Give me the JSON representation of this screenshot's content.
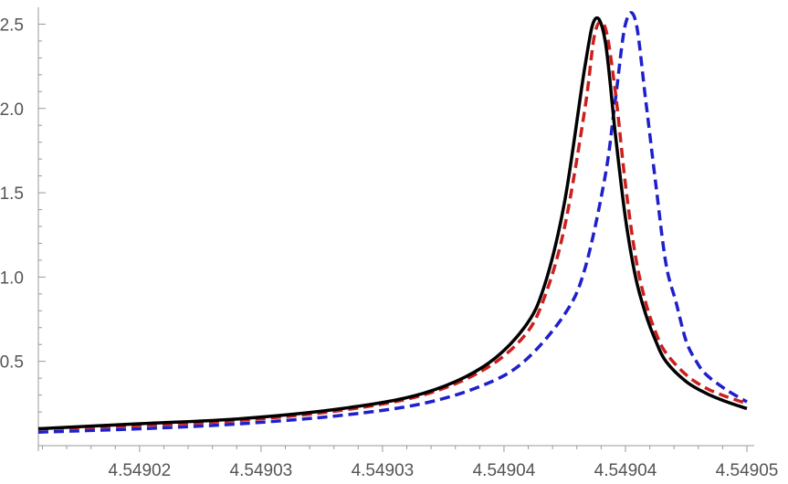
{
  "chart_data": {
    "type": "line",
    "title": "",
    "xlabel": "",
    "ylabel": "",
    "xlim": [
      4.549015,
      4.54905
    ],
    "ylim": [
      0,
      2.6
    ],
    "x_tick_labels": [
      "4.54902",
      "4.54903",
      "4.54903",
      "4.54904",
      "4.54904",
      "4.54905"
    ],
    "x_tick_values": [
      4.54902,
      4.549026,
      4.549032,
      4.549038,
      4.549044,
      4.54905
    ],
    "y_tick_labels": [
      "0.5",
      "1.0",
      "1.5",
      "2.0",
      "2.5"
    ],
    "y_tick_values": [
      0.5,
      1.0,
      1.5,
      2.0,
      2.5
    ],
    "grid": false,
    "series": [
      {
        "style": "dashed",
        "color": "#1f1fcc",
        "x": [
          4.549015,
          4.54902,
          4.549025,
          4.54903,
          4.549034,
          4.549037,
          4.549039,
          4.549041,
          4.549042,
          4.549043,
          4.5490435,
          4.549044,
          4.5490445,
          4.549045,
          4.5490455,
          4.549046,
          4.5490465,
          4.549047,
          4.5490475,
          4.549048,
          4.549049,
          4.54905
        ],
        "y": [
          0.08,
          0.1,
          0.13,
          0.18,
          0.25,
          0.36,
          0.5,
          0.78,
          1.05,
          1.6,
          2.05,
          2.5,
          2.52,
          2.05,
          1.55,
          1.08,
          0.85,
          0.62,
          0.5,
          0.42,
          0.33,
          0.26
        ]
      },
      {
        "style": "dashed",
        "color": "#cc1f1f",
        "x": [
          4.549015,
          4.54902,
          4.549025,
          4.54903,
          4.549034,
          4.549037,
          4.549039,
          4.54904,
          4.549041,
          4.549042,
          4.5490425,
          4.549043,
          4.5490435,
          4.549044,
          4.5490445,
          4.549045,
          4.5490455,
          4.549046,
          4.549047,
          4.549048,
          4.549049,
          4.54905
        ],
        "y": [
          0.1,
          0.12,
          0.15,
          0.21,
          0.3,
          0.45,
          0.65,
          0.88,
          1.3,
          2.0,
          2.45,
          2.48,
          2.1,
          1.55,
          1.12,
          0.85,
          0.67,
          0.55,
          0.42,
          0.34,
          0.29,
          0.25
        ]
      },
      {
        "style": "solid",
        "color": "#000000",
        "x": [
          4.549015,
          4.54902,
          4.549025,
          4.54903,
          4.549034,
          4.549037,
          4.549039,
          4.54904,
          4.549041,
          4.549042,
          4.5490425,
          4.549043,
          4.5490435,
          4.549044,
          4.5490445,
          4.549045,
          4.5490455,
          4.549046,
          4.549047,
          4.549048,
          4.549049,
          4.54905
        ],
        "y": [
          0.1,
          0.13,
          0.16,
          0.22,
          0.31,
          0.47,
          0.7,
          0.95,
          1.45,
          2.25,
          2.53,
          2.4,
          1.85,
          1.35,
          1.0,
          0.78,
          0.62,
          0.5,
          0.38,
          0.31,
          0.26,
          0.22
        ]
      }
    ]
  }
}
